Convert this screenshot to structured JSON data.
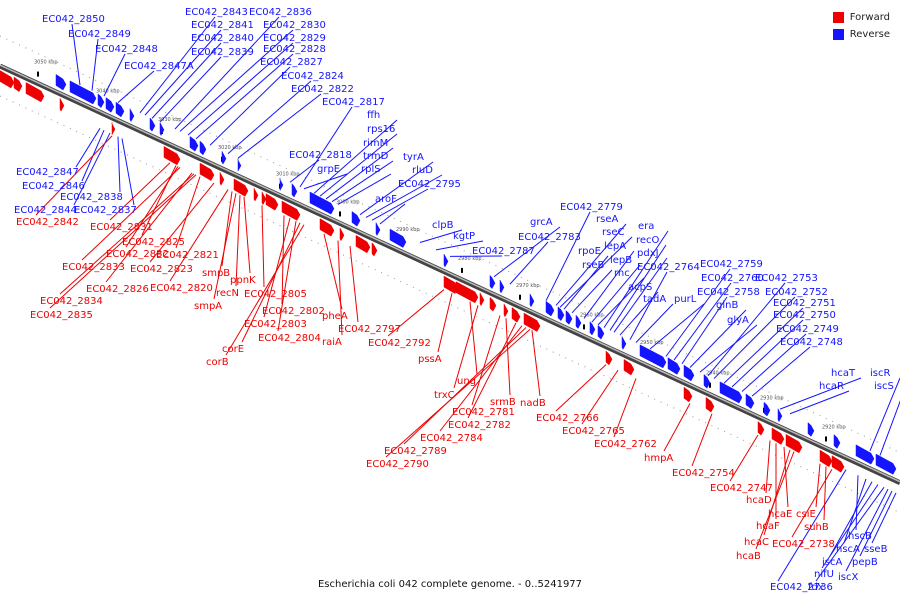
{
  "legend": [
    {
      "name": "Forward",
      "color": "#ee0000"
    },
    {
      "name": "Reverse",
      "color": "#1414ff"
    }
  ],
  "caption": "Escherichia coli 042 complete genome. - 0..5241977",
  "colors": {
    "forward": "#ee0000",
    "reverse": "#1414ff",
    "axis": "#888888"
  },
  "scale_labels": [
    "3050 kbp",
    "3040 kbp",
    "3030 kbp",
    "3020 kbp",
    "3010 kbp",
    "3000 kbp",
    "2990 kbp",
    "2980 kbp",
    "2970 kbp",
    "2960 kbp",
    "2950 kbp",
    "2940 kbp",
    "2930 kbp",
    "2920 kbp"
  ],
  "reverse_upper_labels": [
    "EC042_2850",
    "EC042_2849",
    "EC042_2848",
    "EC042_2847A",
    "EC042_2843",
    "EC042_2841",
    "EC042_2840",
    "EC042_2839",
    "EC042_2836",
    "EC042_2830",
    "EC042_2829",
    "EC042_2828",
    "EC042_2827",
    "EC042_2824",
    "EC042_2822",
    "EC042_2817",
    "ffh",
    "rps16",
    "rimM",
    "trmD",
    "rplS",
    "EC042_2818",
    "grpE",
    "tyrA",
    "rluD",
    "EC042_2795",
    "aroF",
    "clpB",
    "kgtP",
    "EC042_2787",
    "grcA",
    "EC042_2783",
    "EC042_2779",
    "rseA",
    "rseC",
    "rpoE",
    "rseB",
    "lepA",
    "lepB",
    "rnc",
    "era",
    "recO",
    "pdxJ",
    "acpS",
    "EC042_2764",
    "tadA",
    "purL",
    "EC042_2759",
    "EC042_2760",
    "EC042_2758",
    "glnB",
    "glyA",
    "EC042_2753",
    "EC042_2752",
    "EC042_2751",
    "EC042_2750",
    "EC042_2749",
    "EC042_2748",
    "hcaT",
    "hcaR",
    "iscR",
    "iscS"
  ],
  "reverse_left_labels": [
    "EC042_2847",
    "EC042_2846",
    "EC042_2838",
    "EC042_2844",
    "EC042_2837"
  ],
  "reverse_lower_labels": [
    "hscB",
    "hscA",
    "iscA",
    "nifU",
    "EC042_2736",
    "fdx",
    "iscX",
    "pepB",
    "sseB"
  ],
  "forward_labels": [
    "EC042_2842",
    "EC042_2831",
    "EC042_2825",
    "EC042_2832",
    "EC042_2833",
    "EC042_2821",
    "EC042_2823",
    "EC042_2826",
    "EC042_2820",
    "EC042_2834",
    "EC042_2835",
    "smpB",
    "ppnK",
    "recN",
    "smpA",
    "EC042_2805",
    "EC042_2802",
    "EC042_2803",
    "EC042_2804",
    "pheA",
    "EC042_2797",
    "raiA",
    "corE",
    "corB",
    "EC042_2792",
    "pssA",
    "ung",
    "trxC",
    "srmB",
    "EC042_2781",
    "nadB",
    "EC042_2782",
    "EC042_2784",
    "EC042_2789",
    "EC042_2790",
    "EC042_2766",
    "EC042_2765",
    "EC042_2762",
    "hmpA",
    "EC042_2754",
    "EC042_2747",
    "hcaD",
    "hcaE",
    "csiE",
    "hcaF",
    "suhB",
    "hcaC",
    "EC042_2738",
    "hcaB"
  ]
}
